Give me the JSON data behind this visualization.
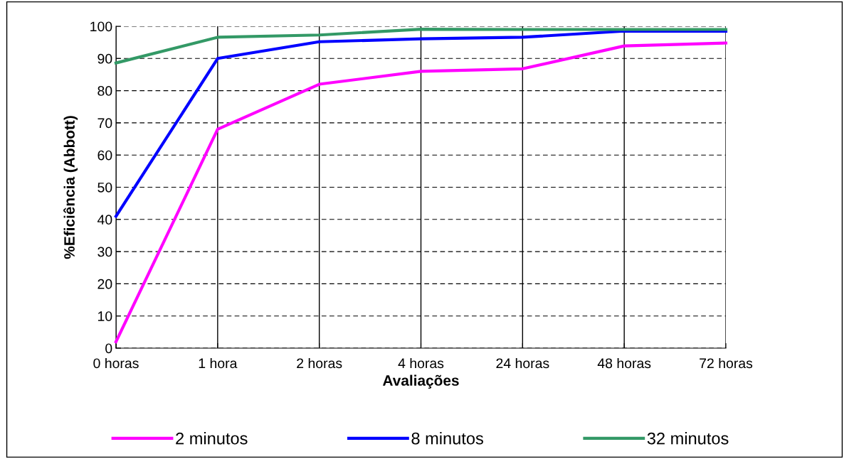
{
  "chart_data": {
    "type": "line",
    "xlabel": "Avaliações",
    "ylabel": "%Eficiência (Abbott)",
    "categories": [
      "0 horas",
      "1 hora",
      "2 horas",
      "4 horas",
      "24 horas",
      "48 horas",
      "72 horas"
    ],
    "series": [
      {
        "name": "2 minutos",
        "color": "#ff00ff",
        "values": [
          2,
          68,
          82,
          86,
          86.8,
          93.9,
          94.8
        ]
      },
      {
        "name": "8 minutos",
        "color": "#0000ff",
        "values": [
          41,
          90,
          95.2,
          96.1,
          96.6,
          98.5,
          98.5
        ]
      },
      {
        "name": "32 minutos",
        "color": "#339966",
        "values": [
          88.6,
          96.6,
          97.3,
          99.1,
          99,
          99,
          99
        ]
      }
    ],
    "ylim": [
      0,
      100
    ],
    "yticks": [
      0,
      10,
      20,
      30,
      40,
      50,
      60,
      70,
      80,
      90,
      100
    ],
    "grid": true,
    "legend": "bottom",
    "marker": "none",
    "line_style": "solid"
  }
}
